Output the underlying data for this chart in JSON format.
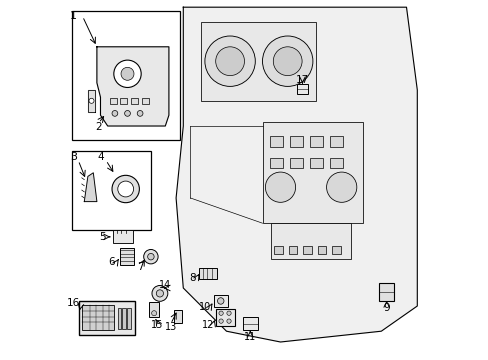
{
  "bg_color": "#ffffff",
  "line_color": "#000000",
  "lw": 0.8
}
